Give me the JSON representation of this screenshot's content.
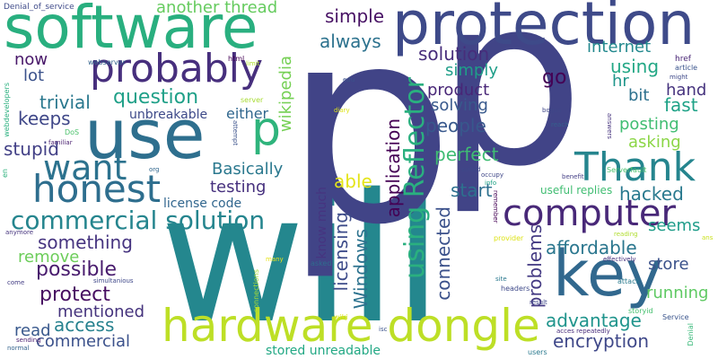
{
  "words": [
    {
      "text": "will",
      "color": "#24878e"
    },
    {
      "text": "p",
      "color": "#414487"
    },
    {
      "text": "p",
      "color": "#414487"
    },
    {
      "text": "software",
      "color": "#29af7f"
    },
    {
      "text": "protection",
      "color": "#3e4a89"
    },
    {
      "text": "use",
      "color": "#2e6f8e"
    },
    {
      "text": "hardware dongle",
      "color": "#bddf26"
    },
    {
      "text": "key",
      "color": "#31688e"
    },
    {
      "text": "probably",
      "color": "#472f7d"
    },
    {
      "text": "Thank",
      "color": "#25858e"
    },
    {
      "text": "honest",
      "color": "#2e6e8e"
    },
    {
      "text": "want",
      "color": "#2c728e"
    },
    {
      "text": "computer",
      "color": "#482878"
    },
    {
      "text": "commercial solution",
      "color": "#25858e"
    },
    {
      "text": "p",
      "color": "#2fb47c"
    },
    {
      "text": "using Reflector",
      "color": "#2ab07f"
    },
    {
      "text": "wikipedia",
      "color": "#75d054"
    },
    {
      "text": "another thread",
      "color": "#65cb5e"
    },
    {
      "text": "simple",
      "color": "#471164"
    },
    {
      "text": "always",
      "color": "#2c728e"
    },
    {
      "text": "solution",
      "color": "#472d7b"
    },
    {
      "text": "internet",
      "color": "#23898e"
    },
    {
      "text": "using",
      "color": "#22a785"
    },
    {
      "text": "now",
      "color": "#481769"
    },
    {
      "text": "lot",
      "color": "#3b528b"
    },
    {
      "text": "trivial",
      "color": "#2a788e"
    },
    {
      "text": "keeps",
      "color": "#3f4788"
    },
    {
      "text": "stupid",
      "color": "#424086"
    },
    {
      "text": "question",
      "color": "#1fa088"
    },
    {
      "text": "unbreakable",
      "color": "#3e4a89"
    },
    {
      "text": "either",
      "color": "#31678e"
    },
    {
      "text": "simply",
      "color": "#1f9e89"
    },
    {
      "text": "product",
      "color": "#482677"
    },
    {
      "text": "solving",
      "color": "#38598c"
    },
    {
      "text": "people",
      "color": "#38588c"
    },
    {
      "text": "go",
      "color": "#440154"
    },
    {
      "text": "hr",
      "color": "#1f968b"
    },
    {
      "text": "bit",
      "color": "#2d718e"
    },
    {
      "text": "hand",
      "color": "#46337e"
    },
    {
      "text": "fast",
      "color": "#1fa287"
    },
    {
      "text": "posting",
      "color": "#40bd72"
    },
    {
      "text": "asking",
      "color": "#8bd646"
    },
    {
      "text": "perfect",
      "color": "#3fbc73"
    },
    {
      "text": "start",
      "color": "#2d708e"
    },
    {
      "text": "hacked",
      "color": "#29798e"
    },
    {
      "text": "seems",
      "color": "#1e9c89"
    },
    {
      "text": "affordable",
      "color": "#2a768e"
    },
    {
      "text": "store",
      "color": "#3b528b"
    },
    {
      "text": "running",
      "color": "#5ec962"
    },
    {
      "text": "advantage",
      "color": "#1f948c"
    },
    {
      "text": "encryption",
      "color": "#3f4889"
    },
    {
      "text": "problems",
      "color": "#443a83"
    },
    {
      "text": "application",
      "color": "#440154"
    },
    {
      "text": "licensing",
      "color": "#3e4c8a"
    },
    {
      "text": "Windows",
      "color": "#2c728e"
    },
    {
      "text": "connected",
      "color": "#3b518b"
    },
    {
      "text": "know much",
      "color": "#463480"
    },
    {
      "text": "able",
      "color": "#e4e419"
    },
    {
      "text": "testing",
      "color": "#46307e"
    },
    {
      "text": "Basically",
      "color": "#2a788e"
    },
    {
      "text": "license code",
      "color": "#31668e"
    },
    {
      "text": "something",
      "color": "#463480"
    },
    {
      "text": "remove",
      "color": "#6ccd5a"
    },
    {
      "text": "possible",
      "color": "#481b6d"
    },
    {
      "text": "protect",
      "color": "#470e61"
    },
    {
      "text": "mentioned",
      "color": "#45337d"
    },
    {
      "text": "access",
      "color": "#26818e"
    },
    {
      "text": "read",
      "color": "#38588c"
    },
    {
      "text": "commercial",
      "color": "#3b518b"
    },
    {
      "text": "stored unreadable",
      "color": "#22a884"
    },
    {
      "text": "Denial_of_service",
      "color": "#3e4a89"
    },
    {
      "text": "webserver",
      "color": "#33638d"
    },
    {
      "text": "html",
      "color": "#440154"
    },
    {
      "text": "limit",
      "color": "#ade02a"
    },
    {
      "text": "href",
      "color": "#482575"
    },
    {
      "text": "article",
      "color": "#3a548c"
    },
    {
      "text": "might",
      "color": "#3e4989"
    },
    {
      "text": "edu",
      "color": "#3b528b"
    },
    {
      "text": "server",
      "color": "#a8db34"
    },
    {
      "text": "diary",
      "color": "#dde318"
    },
    {
      "text": "bogus",
      "color": "#3f4788"
    },
    {
      "text": "reach",
      "color": "#35608d"
    },
    {
      "text": "answers",
      "color": "#45327d"
    },
    {
      "text": "attempt",
      "color": "#3b528b"
    },
    {
      "text": "DoS",
      "color": "#4cc26c"
    },
    {
      "text": "familiar",
      "color": "#481f70"
    },
    {
      "text": "webdevelopers",
      "color": "#2ab07f"
    },
    {
      "text": "org",
      "color": "#31678e"
    },
    {
      "text": "suited",
      "color": "#3e4989"
    },
    {
      "text": "occupy",
      "color": "#3f4788"
    },
    {
      "text": "info",
      "color": "#20a386"
    },
    {
      "text": "benefit",
      "color": "#433e85"
    },
    {
      "text": "Serverfault",
      "color": "#4ac16d"
    },
    {
      "text": "useful replies",
      "color": "#40bd72"
    },
    {
      "text": "remember",
      "color": "#440154"
    },
    {
      "text": "reading",
      "color": "#b0dd2f"
    },
    {
      "text": "provider",
      "color": "#dde318"
    },
    {
      "text": "effectively",
      "color": "#46327e"
    },
    {
      "text": "ans",
      "color": "#cae11f"
    },
    {
      "text": "many",
      "color": "#e7e419"
    },
    {
      "text": "asked",
      "color": "#2f6c8e"
    },
    {
      "text": "connections",
      "color": "#a5db36"
    },
    {
      "text": "simultanious",
      "color": "#3f4889"
    },
    {
      "text": "site",
      "color": "#2a788e"
    },
    {
      "text": "headers",
      "color": "#3e4989"
    },
    {
      "text": "attack",
      "color": "#297a8e"
    },
    {
      "text": "storyid",
      "color": "#46c06f"
    },
    {
      "text": "Service",
      "color": "#3a548c"
    },
    {
      "text": "result",
      "color": "#3f4788"
    },
    {
      "text": "acces repeatedly",
      "color": "#472d7b"
    },
    {
      "text": "Denial",
      "color": "#37b878"
    },
    {
      "text": "users",
      "color": "#29798e"
    },
    {
      "text": "isc",
      "color": "#3b528b"
    },
    {
      "text": "wiki",
      "color": "#dae319"
    },
    {
      "text": "sending",
      "color": "#481d6f"
    },
    {
      "text": "normal",
      "color": "#33638d"
    },
    {
      "text": "come",
      "color": "#433d84"
    },
    {
      "text": "anymore",
      "color": "#45337d"
    },
    {
      "text": "en",
      "color": "#2db27d"
    }
  ]
}
